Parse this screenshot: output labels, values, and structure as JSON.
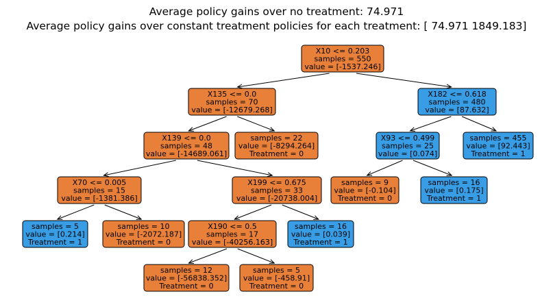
{
  "title": {
    "line1": "Average policy gains over no treatment: 74.971",
    "line2": "Average policy gains over constant treatment policies for each treatment: [  74.971 1849.183]"
  },
  "colors": {
    "orange": "#e8803a",
    "blue": "#399de5"
  },
  "nodes": [
    {
      "id": "n0",
      "lines": [
        "X10 <= 0.203",
        "samples = 550",
        "value = [-1537.246]"
      ],
      "color": "orange"
    },
    {
      "id": "n1",
      "lines": [
        "X135 <= 0.0",
        "samples = 70",
        "value = [-12679.268]"
      ],
      "color": "orange"
    },
    {
      "id": "n2",
      "lines": [
        "X182 <= 0.618",
        "samples = 480",
        "value = [87.632]"
      ],
      "color": "blue"
    },
    {
      "id": "n3",
      "lines": [
        "X139 <= 0.0",
        "samples = 48",
        "value = [-14689.061]"
      ],
      "color": "orange"
    },
    {
      "id": "n4",
      "lines": [
        "samples = 22",
        "value = [-8294.264]",
        "Treatment = 0"
      ],
      "color": "orange"
    },
    {
      "id": "n5",
      "lines": [
        "X93 <= 0.499",
        "samples = 25",
        "value = [0.074]"
      ],
      "color": "blue"
    },
    {
      "id": "n6",
      "lines": [
        "samples = 455",
        "value = [92.443]",
        "Treatment = 1"
      ],
      "color": "blue"
    },
    {
      "id": "n7",
      "lines": [
        "X70 <= 0.005",
        "samples = 15",
        "value = [-1381.386]"
      ],
      "color": "orange"
    },
    {
      "id": "n8",
      "lines": [
        "X199 <= 0.675",
        "samples = 33",
        "value = [-20738.004]"
      ],
      "color": "orange"
    },
    {
      "id": "n9",
      "lines": [
        "samples = 9",
        "value = [-0.104]",
        "Treatment = 0"
      ],
      "color": "orange"
    },
    {
      "id": "n10",
      "lines": [
        "samples = 16",
        "value = [0.175]",
        "Treatment = 1"
      ],
      "color": "blue"
    },
    {
      "id": "n11",
      "lines": [
        "samples = 5",
        "value = [0.214]",
        "Treatment = 1"
      ],
      "color": "blue"
    },
    {
      "id": "n12",
      "lines": [
        "samples = 10",
        "value = [-2072.187]",
        "Treatment = 0"
      ],
      "color": "orange"
    },
    {
      "id": "n13",
      "lines": [
        "X190 <= 0.5",
        "samples = 17",
        "value = [-40256.163]"
      ],
      "color": "orange"
    },
    {
      "id": "n14",
      "lines": [
        "samples = 16",
        "value = [0.039]",
        "Treatment = 1"
      ],
      "color": "blue"
    },
    {
      "id": "n15",
      "lines": [
        "samples = 12",
        "value = [-56838.352]",
        "Treatment = 0"
      ],
      "color": "orange"
    },
    {
      "id": "n16",
      "lines": [
        "samples = 5",
        "value = [-458.91]",
        "Treatment = 0"
      ],
      "color": "orange"
    }
  ],
  "edges": [
    [
      "n0",
      "n1"
    ],
    [
      "n0",
      "n2"
    ],
    [
      "n1",
      "n3"
    ],
    [
      "n1",
      "n4"
    ],
    [
      "n2",
      "n5"
    ],
    [
      "n2",
      "n6"
    ],
    [
      "n3",
      "n7"
    ],
    [
      "n3",
      "n8"
    ],
    [
      "n5",
      "n9"
    ],
    [
      "n5",
      "n10"
    ],
    [
      "n7",
      "n11"
    ],
    [
      "n7",
      "n12"
    ],
    [
      "n8",
      "n13"
    ],
    [
      "n8",
      "n14"
    ],
    [
      "n13",
      "n15"
    ],
    [
      "n13",
      "n16"
    ]
  ]
}
